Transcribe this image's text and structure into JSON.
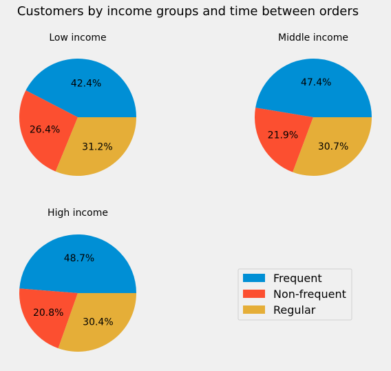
{
  "chart_data": {
    "title": "Customers by income groups and time between orders",
    "type": "pie",
    "legend": {
      "placement": "lower-right",
      "entries": [
        "Frequent",
        "Non-frequent",
        "Regular"
      ]
    },
    "colors": {
      "Frequent": "#008fd5",
      "Non-frequent": "#fc4f30",
      "Regular": "#e5ae38"
    },
    "background": "#f0f0f0",
    "charts": [
      {
        "title": "Low income",
        "type": "pie",
        "labels": [
          "Frequent",
          "Non-frequent",
          "Regular"
        ],
        "values": [
          42.4,
          26.4,
          31.2
        ],
        "value_labels": [
          "42.4%",
          "26.4%",
          "31.2%"
        ]
      },
      {
        "title": "Middle income",
        "type": "pie",
        "labels": [
          "Frequent",
          "Non-frequent",
          "Regular"
        ],
        "values": [
          47.4,
          21.9,
          30.7
        ],
        "value_labels": [
          "47.4%",
          "21.9%",
          "30.7%"
        ]
      },
      {
        "title": "High income",
        "type": "pie",
        "labels": [
          "Frequent",
          "Non-frequent",
          "Regular"
        ],
        "values": [
          48.7,
          20.8,
          30.4
        ],
        "value_labels": [
          "48.7%",
          "20.8%",
          "30.4%"
        ]
      }
    ]
  }
}
